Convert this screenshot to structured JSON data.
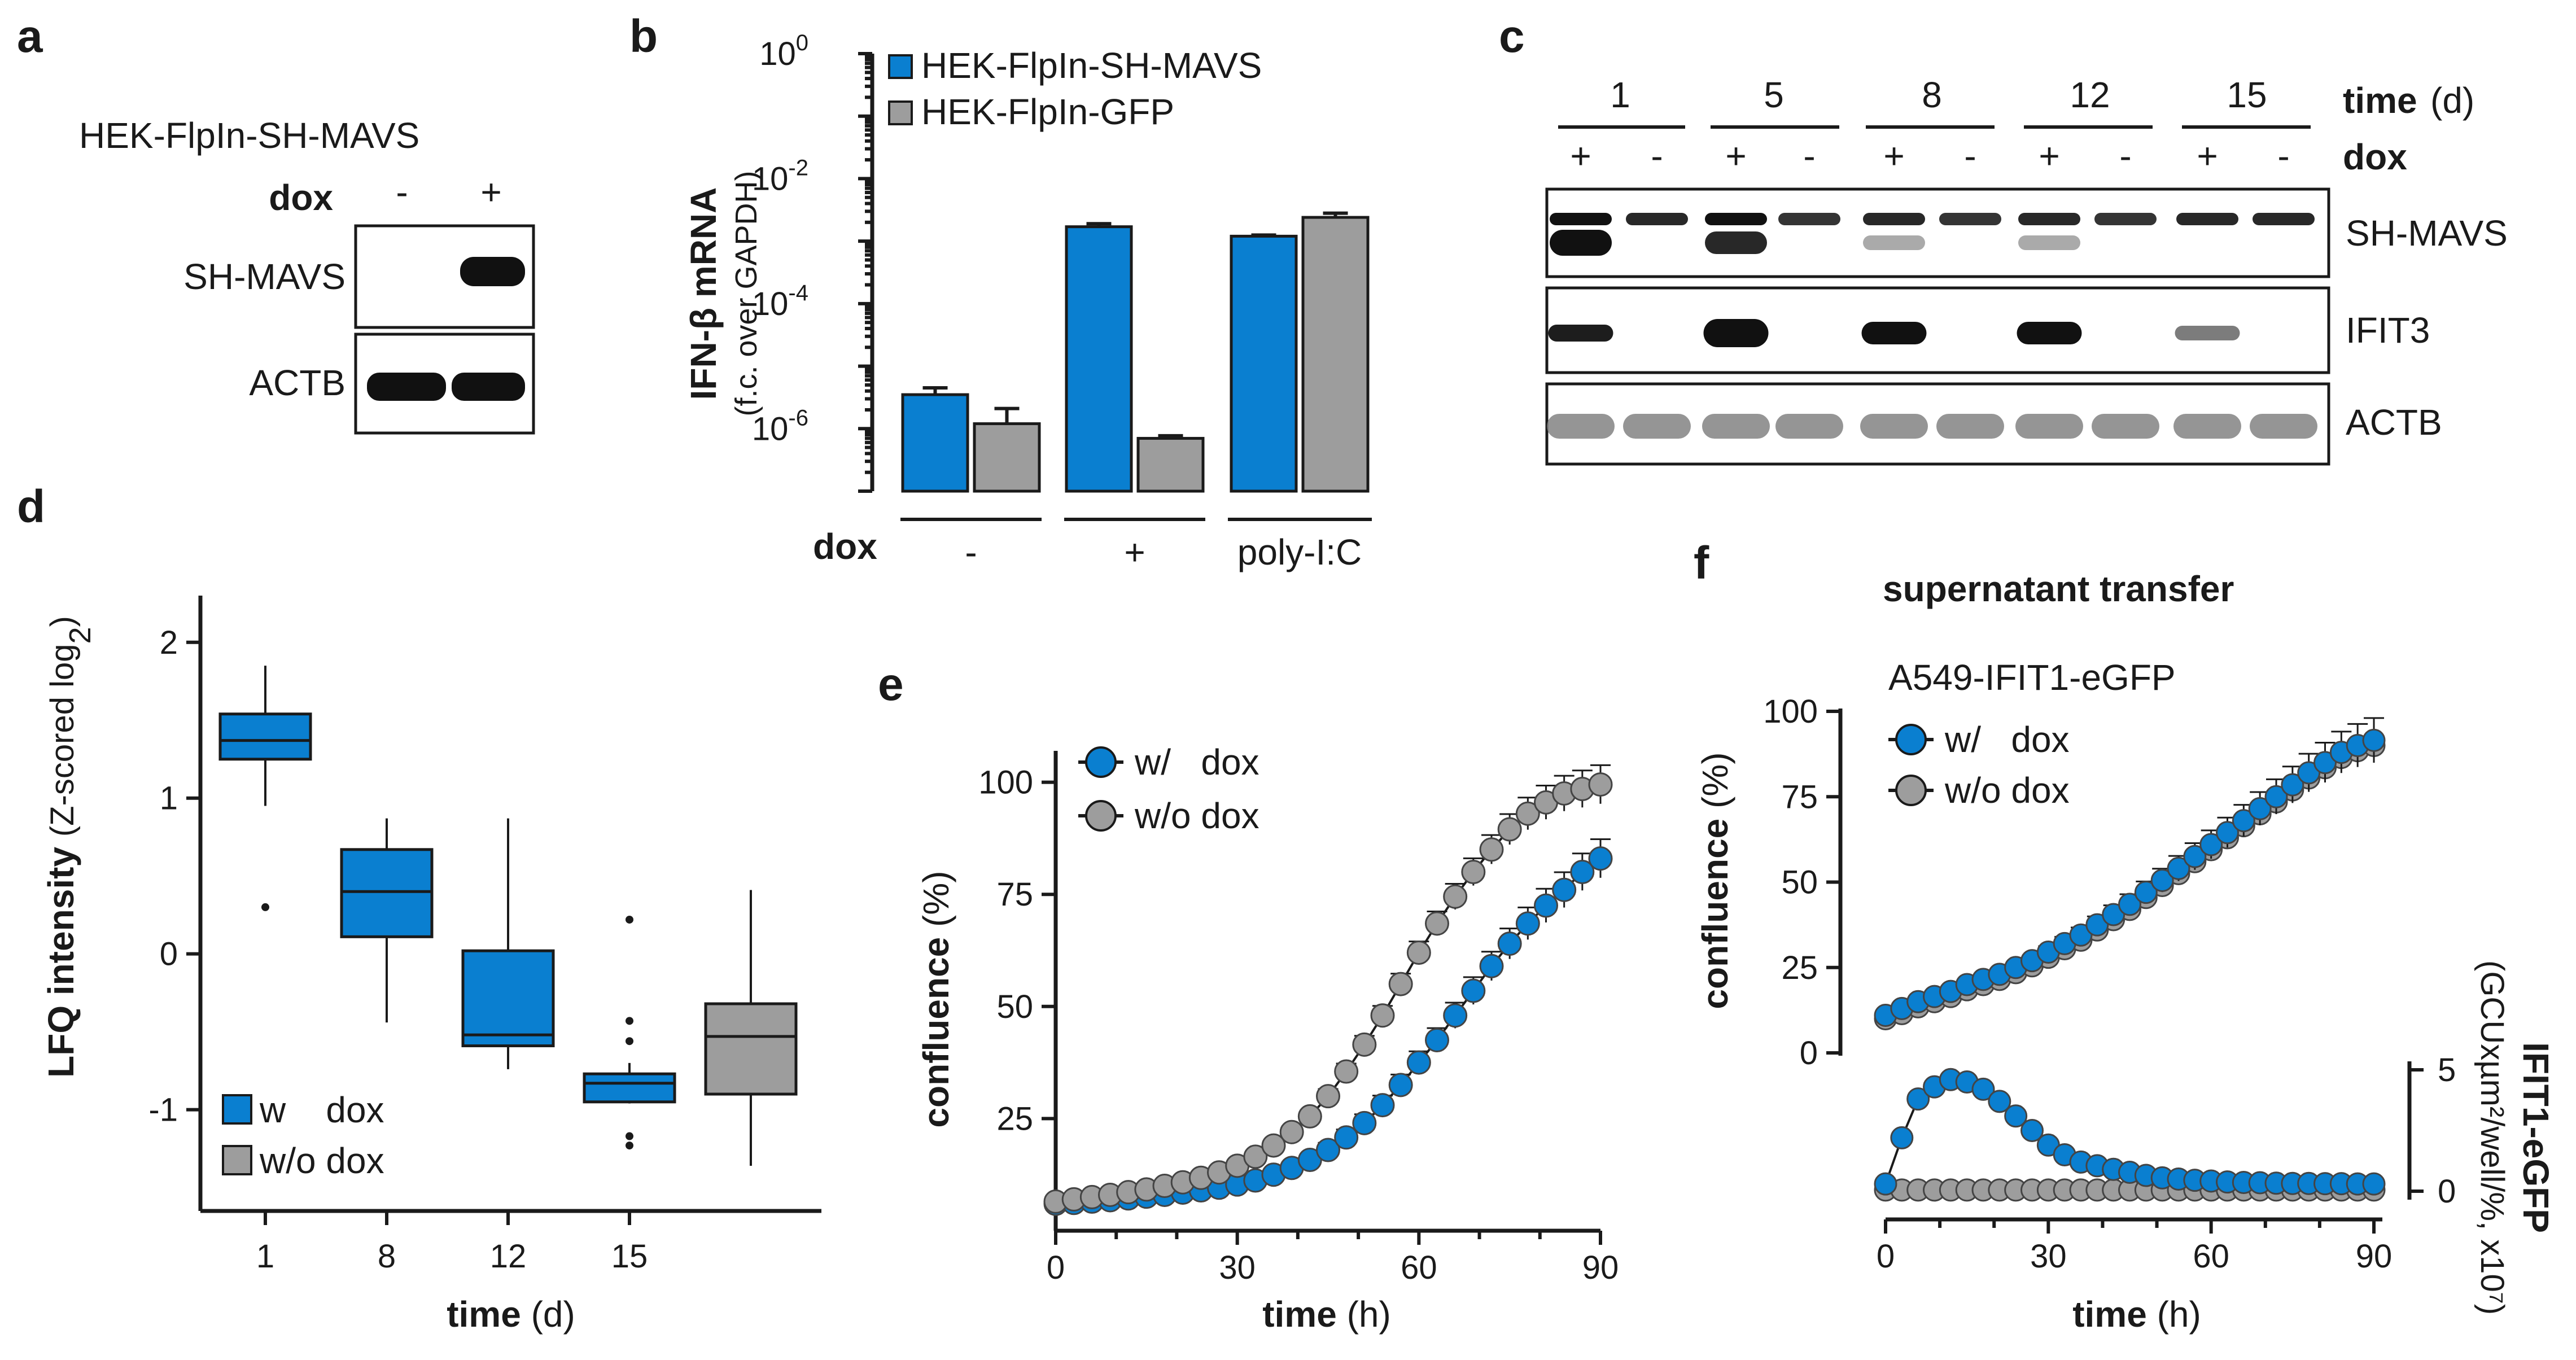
{
  "colors": {
    "blue": "#0a7fd0",
    "gray": "#9d9d9d",
    "dark": "#1a1a1a",
    "wb_band": "#111111",
    "wb_band_faint": "#555555"
  },
  "panels": {
    "a": {
      "label": "a",
      "cell_line": "HEK-FlpIn-SH-MAVS",
      "dox_label": "dox",
      "dox_states": [
        "-",
        "+"
      ],
      "blots": [
        "SH-MAVS",
        "ACTB"
      ]
    },
    "b": {
      "label": "b",
      "ylabel_bold": "IFN-β mRNA",
      "ylabel_sub": "(f.c. over GAPDH)",
      "yticks": [
        {
          "base": "10",
          "exp": "0",
          "log": 0
        },
        {
          "base": "10",
          "exp": "-2",
          "log": -2
        },
        {
          "base": "10",
          "exp": "-4",
          "log": -4
        },
        {
          "base": "10",
          "exp": "-6",
          "log": -6
        }
      ],
      "legend": [
        "HEK-FlpIn-SH-MAVS",
        "HEK-FlpIn-GFP"
      ],
      "dox_label": "dox",
      "groups": [
        "-",
        "+",
        "poly-I:C"
      ]
    },
    "c": {
      "label": "c",
      "time_label": "time",
      "time_unit": "(d)",
      "dox_label": "dox",
      "times": [
        "1",
        "5",
        "8",
        "12",
        "15"
      ],
      "dox_states": [
        "+",
        "-",
        "+",
        "-",
        "+",
        "-",
        "+",
        "-",
        "+",
        "-"
      ],
      "blots": [
        "SH-MAVS",
        "IFIT3",
        "ACTB"
      ]
    },
    "d": {
      "label": "d",
      "ylabel_bold": "LFQ intensity",
      "ylabel_sub": "(Z-scored log",
      "ylabel_subscript": "2",
      "ylabel_close": ")",
      "yticks": [
        "2",
        "1",
        "0",
        "-1"
      ],
      "xticks": [
        "1",
        "8",
        "12",
        "15"
      ],
      "xlabel_bold": "time",
      "xlabel_unit": "(d)",
      "legend": [
        "w    dox",
        "w/o dox"
      ]
    },
    "e": {
      "label": "e",
      "ylabel_bold": "confluence",
      "ylabel_unit": "(%)",
      "yticks": [
        "100",
        "75",
        "50",
        "25"
      ],
      "xticks": [
        "0",
        "30",
        "60",
        "90"
      ],
      "xlabel_bold": "time",
      "xlabel_unit": "(h)",
      "legend": [
        "w/   dox",
        "w/o dox"
      ]
    },
    "f": {
      "label": "f",
      "title": "supernatant transfer",
      "cell_line": "A549-IFIT1-eGFP",
      "ylabel_bold": "confluence",
      "ylabel_unit": "(%)",
      "yticks": [
        "100",
        "75",
        "50",
        "25",
        "0"
      ],
      "y2label_bold": "IFIT1-eGFP",
      "y2label_sub": "(GCUxµm²/well/%, x10⁷)",
      "y2ticks": [
        "5",
        "0"
      ],
      "xticks": [
        "0",
        "30",
        "60",
        "90"
      ],
      "xlabel_bold": "time",
      "xlabel_unit": "(h)",
      "legend": [
        "w/   dox",
        "w/o dox"
      ]
    }
  },
  "chart_data": [
    {
      "panel": "b",
      "type": "bar",
      "title": "",
      "ylabel": "IFN-β mRNA (f.c. over GAPDH)",
      "yscale": "log",
      "ylim": [
        1e-07,
        1
      ],
      "categories": [
        "-",
        "+",
        "poly-I:C"
      ],
      "series": [
        {
          "name": "HEK-FlpIn-SH-MAVS",
          "color": "blue",
          "values": [
            3.5e-06,
            0.0017,
            0.0012
          ],
          "errors": [
            1e-06,
            0.0002,
            5e-05
          ]
        },
        {
          "name": "HEK-FlpIn-GFP",
          "color": "gray",
          "values": [
            1.2e-06,
            7e-07,
            0.0024
          ],
          "errors": [
            9e-07,
            7e-08,
            0.0004
          ]
        }
      ]
    },
    {
      "panel": "d",
      "type": "box",
      "ylabel": "LFQ intensity (Z-scored log2)",
      "xlabel": "time (d)",
      "ylim": [
        -1.65,
        2.3
      ],
      "categories": [
        "1",
        "8",
        "12",
        "15",
        ""
      ],
      "boxes": [
        {
          "name": "1",
          "color": "blue",
          "whisker_low": 0.95,
          "q1": 1.25,
          "median": 1.37,
          "q3": 1.54,
          "whisker_high": 1.85,
          "outliers": [
            0.3
          ]
        },
        {
          "name": "8",
          "color": "blue",
          "whisker_low": -0.44,
          "q1": 0.11,
          "median": 0.4,
          "q3": 0.67,
          "whisker_high": 0.87,
          "outliers": []
        },
        {
          "name": "12",
          "color": "blue",
          "whisker_low": -0.74,
          "q1": -0.59,
          "median": -0.52,
          "q3": 0.02,
          "whisker_high": 0.87,
          "outliers": []
        },
        {
          "name": "15",
          "color": "blue",
          "whisker_low": -0.96,
          "q1": -0.95,
          "median": -0.83,
          "q3": -0.77,
          "whisker_high": -0.7,
          "outliers": [
            0.22,
            -0.43,
            -0.56,
            -1.17,
            -1.23
          ]
        },
        {
          "name": "w/o dox",
          "color": "gray",
          "whisker_low": -1.36,
          "q1": -0.9,
          "median": -0.53,
          "q3": -0.32,
          "whisker_high": 0.41,
          "outliers": []
        }
      ]
    },
    {
      "panel": "e",
      "type": "scatter",
      "ylabel": "confluence (%)",
      "xlabel": "time (h)",
      "xlim": [
        0,
        90
      ],
      "ylim": [
        0,
        107
      ],
      "x": [
        0,
        3,
        6,
        9,
        12,
        15,
        18,
        21,
        24,
        27,
        30,
        33,
        36,
        39,
        42,
        45,
        48,
        51,
        54,
        57,
        60,
        63,
        66,
        69,
        72,
        75,
        78,
        81,
        84,
        87,
        90
      ],
      "series": [
        {
          "name": "w/   dox",
          "color": "blue",
          "values": [
            6,
            6.2,
            6.5,
            6.8,
            7.2,
            7.6,
            8,
            8.5,
            9,
            9.6,
            10.3,
            11.2,
            12.5,
            14,
            15.8,
            18,
            20.8,
            24,
            28,
            32.5,
            37.5,
            42.5,
            48,
            53.5,
            59,
            64,
            68.5,
            72.5,
            76,
            80,
            83
          ]
        },
        {
          "name": "w/o dox",
          "color": "gray",
          "values": [
            6.5,
            7,
            7.5,
            8,
            8.6,
            9.2,
            10,
            10.8,
            11.8,
            13,
            14.5,
            16.5,
            19,
            22,
            25.5,
            30,
            35.5,
            41.5,
            48,
            55,
            62,
            68.5,
            74.5,
            80,
            85,
            89.5,
            93,
            95.5,
            97.5,
            98.5,
            99.5
          ]
        }
      ]
    },
    {
      "panel": "f-confluence",
      "type": "scatter",
      "ylabel": "confluence (%)",
      "xlabel": "time (h)",
      "xlim": [
        0,
        90
      ],
      "ylim": [
        0,
        100
      ],
      "x": [
        0,
        3,
        6,
        9,
        12,
        15,
        18,
        21,
        24,
        27,
        30,
        33,
        36,
        39,
        42,
        45,
        48,
        51,
        54,
        57,
        60,
        63,
        66,
        69,
        72,
        75,
        78,
        81,
        84,
        87,
        90
      ],
      "series": [
        {
          "name": "w/   dox",
          "color": "blue",
          "values": [
            11,
            13,
            15,
            16.5,
            18,
            20,
            21.5,
            23,
            25,
            27,
            29.5,
            32,
            34.5,
            37.5,
            40.5,
            43.5,
            47,
            50.5,
            54,
            57.5,
            61,
            64.5,
            68,
            71.5,
            75,
            78.5,
            82,
            85,
            88,
            90,
            91.5
          ]
        },
        {
          "name": "w/o dox",
          "color": "gray",
          "values": [
            10,
            11.5,
            13.5,
            15,
            16.5,
            18.5,
            20,
            21.5,
            23.5,
            25.5,
            28,
            30.5,
            33,
            36,
            39,
            42,
            45.5,
            49,
            52.5,
            56,
            59.5,
            63,
            66.5,
            70,
            73.5,
            77,
            80.5,
            83.5,
            86.5,
            88.5,
            90
          ]
        }
      ]
    },
    {
      "panel": "f-IFIT1-eGFP",
      "type": "scatter",
      "ylabel": "IFIT1-eGFP (GCUxµm²/well/%, x10⁷)",
      "xlabel": "time (h)",
      "xlim": [
        0,
        90
      ],
      "ylim": [
        0,
        5
      ],
      "x": [
        0,
        3,
        6,
        9,
        12,
        15,
        18,
        21,
        24,
        27,
        30,
        33,
        36,
        39,
        42,
        45,
        48,
        51,
        54,
        57,
        60,
        63,
        66,
        69,
        72,
        75,
        78,
        81,
        84,
        87,
        90
      ],
      "series": [
        {
          "name": "w/   dox",
          "color": "blue",
          "values": [
            0.3,
            2.2,
            3.8,
            4.3,
            4.6,
            4.5,
            4.2,
            3.7,
            3.1,
            2.5,
            1.9,
            1.5,
            1.2,
            1.05,
            0.9,
            0.78,
            0.65,
            0.55,
            0.5,
            0.45,
            0.42,
            0.38,
            0.36,
            0.35,
            0.33,
            0.32,
            0.32,
            0.31,
            0.31,
            0.3,
            0.3
          ]
        },
        {
          "name": "w/o dox",
          "color": "gray",
          "values": [
            0.05,
            0.05,
            0.05,
            0.05,
            0.05,
            0.05,
            0.05,
            0.05,
            0.05,
            0.05,
            0.05,
            0.05,
            0.05,
            0.05,
            0.05,
            0.05,
            0.05,
            0.05,
            0.05,
            0.05,
            0.05,
            0.05,
            0.05,
            0.05,
            0.05,
            0.05,
            0.05,
            0.05,
            0.05,
            0.05,
            0.05
          ]
        }
      ]
    }
  ]
}
